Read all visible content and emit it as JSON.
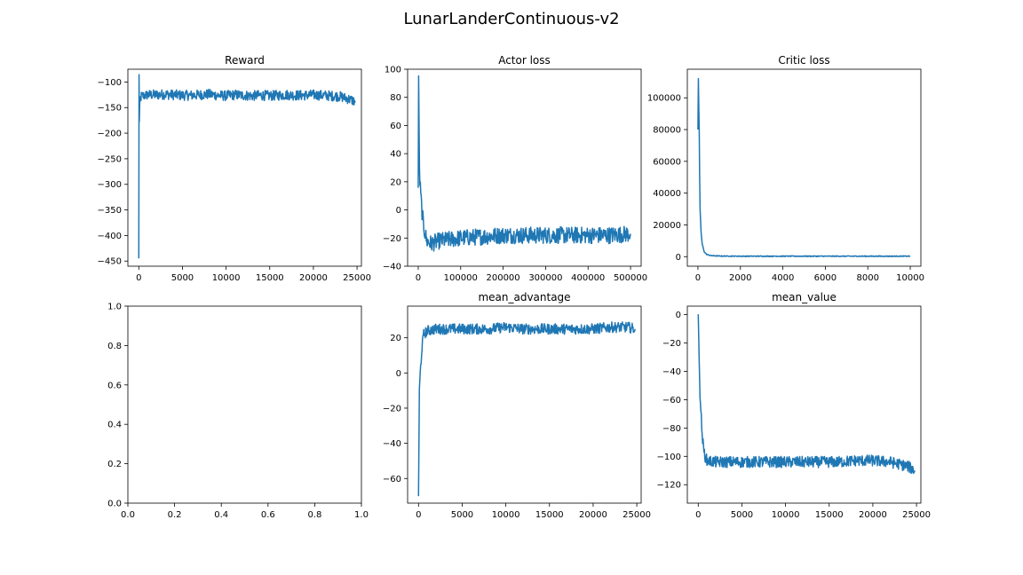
{
  "figure": {
    "title": "LunarLanderContinuous-v2",
    "line_color": "#1f77b4",
    "background": "#ffffff"
  },
  "chart_data": [
    {
      "id": "reward",
      "type": "line",
      "title": "Reward",
      "xlim": [
        -1250,
        25500
      ],
      "ylim": [
        -460,
        -75
      ],
      "xticks": [
        0,
        5000,
        10000,
        15000,
        20000,
        25000
      ],
      "xtick_labels": [
        "0",
        "5000",
        "10000",
        "15000",
        "20000",
        "25000"
      ],
      "yticks": [
        -100,
        -150,
        -200,
        -250,
        -300,
        -350,
        -400,
        -450
      ],
      "ytick_labels": [
        "−100",
        "−150",
        "−200",
        "−250",
        "−300",
        "−350",
        "−400",
        "−450"
      ],
      "series": [
        {
          "x": [
            0,
            30,
            60,
            120,
            200,
            300,
            500,
            800,
            1000,
            2000,
            3000,
            4000,
            5000,
            6000,
            7000,
            8000,
            9000,
            10000,
            11000,
            12000,
            13000,
            14000,
            15000,
            16000,
            17000,
            18000,
            19000,
            20000,
            21000,
            22000,
            23000,
            24000,
            24800
          ],
          "y": [
            -445,
            -85,
            -180,
            -140,
            -132,
            -128,
            -127,
            -126,
            -125,
            -125,
            -124,
            -125,
            -126,
            -126,
            -125,
            -124,
            -126,
            -127,
            -125,
            -126,
            -127,
            -126,
            -127,
            -126,
            -125,
            -126,
            -126,
            -125,
            -126,
            -127,
            -128,
            -133,
            -138
          ],
          "noise": 10
        }
      ]
    },
    {
      "id": "actor-loss",
      "type": "line",
      "title": "Actor loss",
      "xlim": [
        -25000,
        525000
      ],
      "ylim": [
        -40,
        100
      ],
      "xticks": [
        0,
        100000,
        200000,
        300000,
        400000,
        500000
      ],
      "xtick_labels": [
        "0",
        "100000",
        "200000",
        "300000",
        "400000",
        "500000"
      ],
      "yticks": [
        100,
        80,
        60,
        40,
        20,
        0,
        -20,
        -40
      ],
      "ytick_labels": [
        "100",
        "80",
        "60",
        "40",
        "20",
        "0",
        "−20",
        "−40"
      ],
      "series": [
        {
          "x": [
            0,
            1000,
            3000,
            6000,
            10000,
            15000,
            20000,
            30000,
            50000,
            100000,
            150000,
            200000,
            250000,
            300000,
            350000,
            400000,
            450000,
            500000
          ],
          "y": [
            15,
            95,
            25,
            10,
            -5,
            -15,
            -22,
            -24,
            -22,
            -20,
            -19,
            -18,
            -18,
            -18,
            -18,
            -18,
            -18,
            -17
          ],
          "noise": 6
        }
      ]
    },
    {
      "id": "critic-loss",
      "type": "line",
      "title": "Critic loss",
      "xlim": [
        -500,
        10500
      ],
      "ylim": [
        -6000,
        118000
      ],
      "xticks": [
        0,
        2000,
        4000,
        6000,
        8000,
        10000
      ],
      "xtick_labels": [
        "0",
        "2000",
        "4000",
        "6000",
        "8000",
        "10000"
      ],
      "yticks": [
        0,
        20000,
        40000,
        60000,
        80000,
        100000
      ],
      "ytick_labels": [
        "0",
        "20000",
        "40000",
        "60000",
        "80000",
        "100000"
      ],
      "series": [
        {
          "x": [
            0,
            20,
            40,
            60,
            80,
            100,
            150,
            200,
            300,
            400,
            600,
            1000,
            2000,
            3000,
            4000,
            5000,
            6000,
            7000,
            8000,
            9000,
            10000
          ],
          "y": [
            80000,
            112000,
            95000,
            80000,
            50000,
            30000,
            15000,
            8000,
            3000,
            1500,
            700,
            400,
            300,
            300,
            300,
            300,
            300,
            300,
            300,
            300,
            300
          ],
          "noise": 250
        }
      ]
    },
    {
      "id": "empty",
      "type": "line",
      "title": "",
      "xlim": [
        0,
        1
      ],
      "ylim": [
        0,
        1
      ],
      "xticks": [
        0,
        0.2,
        0.4,
        0.6,
        0.8,
        1.0
      ],
      "xtick_labels": [
        "0.0",
        "0.2",
        "0.4",
        "0.6",
        "0.8",
        "1.0"
      ],
      "yticks": [
        0,
        0.2,
        0.4,
        0.6,
        0.8,
        1.0
      ],
      "ytick_labels": [
        "0.0",
        "0.2",
        "0.4",
        "0.6",
        "0.8",
        "1.0"
      ],
      "series": []
    },
    {
      "id": "mean-advantage",
      "type": "line",
      "title": "mean_advantage",
      "xlim": [
        -1250,
        25500
      ],
      "ylim": [
        -74,
        38
      ],
      "xticks": [
        0,
        5000,
        10000,
        15000,
        20000,
        25000
      ],
      "xtick_labels": [
        "0",
        "5000",
        "10000",
        "15000",
        "20000",
        "25000"
      ],
      "yticks": [
        20,
        0,
        -20,
        -40,
        -60
      ],
      "ytick_labels": [
        "20",
        "0",
        "−20",
        "−40",
        "−60"
      ],
      "series": [
        {
          "x": [
            0,
            50,
            100,
            200,
            400,
            600,
            1000,
            2000,
            4000,
            6000,
            8000,
            10000,
            12000,
            14000,
            16000,
            18000,
            20000,
            22000,
            24000,
            24800
          ],
          "y": [
            -70,
            -40,
            -10,
            0,
            15,
            22,
            24,
            25,
            25,
            25,
            25,
            26,
            25,
            25,
            25,
            25,
            25,
            26,
            26,
            25
          ],
          "noise": 3
        }
      ]
    },
    {
      "id": "mean-value",
      "type": "line",
      "title": "mean_value",
      "xlim": [
        -1250,
        25500
      ],
      "ylim": [
        -133,
        6
      ],
      "xticks": [
        0,
        5000,
        10000,
        15000,
        20000,
        25000
      ],
      "xtick_labels": [
        "0",
        "5000",
        "10000",
        "15000",
        "20000",
        "25000"
      ],
      "yticks": [
        0,
        -20,
        -40,
        -60,
        -80,
        -100,
        -120
      ],
      "ytick_labels": [
        "0",
        "−20",
        "−40",
        "−60",
        "−80",
        "−100",
        "−120"
      ],
      "series": [
        {
          "x": [
            0,
            100,
            200,
            400,
            600,
            800,
            1000,
            2000,
            4000,
            6000,
            8000,
            10000,
            12000,
            14000,
            16000,
            18000,
            20000,
            22000,
            24000,
            24800
          ],
          "y": [
            0,
            -30,
            -55,
            -80,
            -95,
            -100,
            -103,
            -104,
            -104,
            -104,
            -104,
            -104,
            -104,
            -104,
            -104,
            -103,
            -103,
            -104,
            -107,
            -110
          ],
          "noise": 4
        }
      ]
    }
  ]
}
